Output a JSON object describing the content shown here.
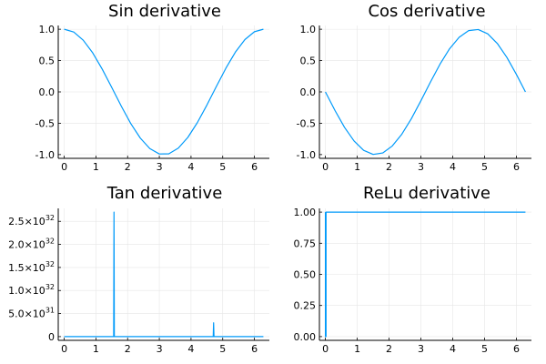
{
  "chart_data": [
    {
      "type": "line",
      "title": "Sin derivative",
      "xlabel": "",
      "ylabel": "",
      "xlim": [
        0,
        6.2832
      ],
      "ylim": [
        -1,
        1
      ],
      "xticks": [
        "0",
        "1",
        "2",
        "3",
        "4",
        "5",
        "6"
      ],
      "yticks": [
        "-1.0",
        "-0.5",
        "0.0",
        "0.5",
        "1.0"
      ],
      "grid": true,
      "legend": "none",
      "series": [
        {
          "color": "#009AFA",
          "x": [
            0,
            0.3,
            0.6,
            0.9,
            1.2,
            1.5,
            1.8,
            2.1,
            2.4,
            2.7,
            3.0,
            3.3,
            3.6,
            3.9,
            4.2,
            4.5,
            4.8,
            5.1,
            5.4,
            5.7,
            6.0,
            6.2832
          ],
          "y": [
            1.0,
            0.955,
            0.825,
            0.622,
            0.362,
            0.071,
            -0.227,
            -0.505,
            -0.737,
            -0.904,
            -0.99,
            -0.987,
            -0.897,
            -0.726,
            -0.49,
            -0.211,
            0.087,
            0.378,
            0.635,
            0.835,
            0.96,
            1.0
          ]
        }
      ]
    },
    {
      "type": "line",
      "title": "Cos derivative",
      "xlabel": "",
      "ylabel": "",
      "xlim": [
        0,
        6.2832
      ],
      "ylim": [
        -1,
        1
      ],
      "xticks": [
        "0",
        "1",
        "2",
        "3",
        "4",
        "5",
        "6"
      ],
      "yticks": [
        "-1.0",
        "-0.5",
        "0.0",
        "0.5",
        "1.0"
      ],
      "grid": true,
      "legend": "none",
      "series": [
        {
          "color": "#009AFA",
          "x": [
            0,
            0.3,
            0.6,
            0.9,
            1.2,
            1.5,
            1.8,
            2.1,
            2.4,
            2.7,
            3.0,
            3.3,
            3.6,
            3.9,
            4.2,
            4.5,
            4.8,
            5.1,
            5.4,
            5.7,
            6.0,
            6.2832
          ],
          "y": [
            0,
            -0.296,
            -0.565,
            -0.783,
            -0.932,
            -0.997,
            -0.974,
            -0.863,
            -0.675,
            -0.427,
            -0.141,
            0.158,
            0.443,
            0.688,
            0.872,
            0.978,
            0.996,
            0.926,
            0.773,
            0.551,
            0.279,
            0
          ]
        }
      ]
    },
    {
      "type": "line",
      "title": "Tan derivative",
      "xlabel": "",
      "ylabel": "",
      "xlim": [
        0,
        6.2832
      ],
      "ylim": [
        0,
        2.7e+32
      ],
      "xticks": [
        "0",
        "1",
        "2",
        "3",
        "4",
        "5",
        "6"
      ],
      "yticks": [
        {
          "base": "0",
          "exp": ""
        },
        {
          "base": "5.0×10",
          "exp": "31"
        },
        {
          "base": "1.0×10",
          "exp": "32"
        },
        {
          "base": "1.5×10",
          "exp": "32"
        },
        {
          "base": "2.0×10",
          "exp": "32"
        },
        {
          "base": "2.5×10",
          "exp": "32"
        }
      ],
      "grid": true,
      "legend": "none",
      "series": [
        {
          "color": "#009AFA",
          "x": [
            0,
            1.56,
            1.5708,
            1.581,
            4.7,
            4.7124,
            4.725,
            6.2832
          ],
          "y": [
            0,
            0,
            2.7e+32,
            0,
            0,
            3e+31,
            0,
            0
          ]
        }
      ]
    },
    {
      "type": "line",
      "title": "ReLu derivative",
      "xlabel": "",
      "ylabel": "",
      "xlim": [
        0,
        6.2832
      ],
      "ylim": [
        0,
        1
      ],
      "xticks": [
        "0",
        "1",
        "2",
        "3",
        "4",
        "5",
        "6"
      ],
      "yticks": [
        "0.00",
        "0.25",
        "0.50",
        "0.75",
        "1.00"
      ],
      "grid": true,
      "legend": "none",
      "series": [
        {
          "color": "#009AFA",
          "x": [
            0,
            0,
            0.02,
            0.02,
            6.2832
          ],
          "y": [
            1,
            0,
            0,
            1,
            1
          ]
        }
      ]
    }
  ]
}
